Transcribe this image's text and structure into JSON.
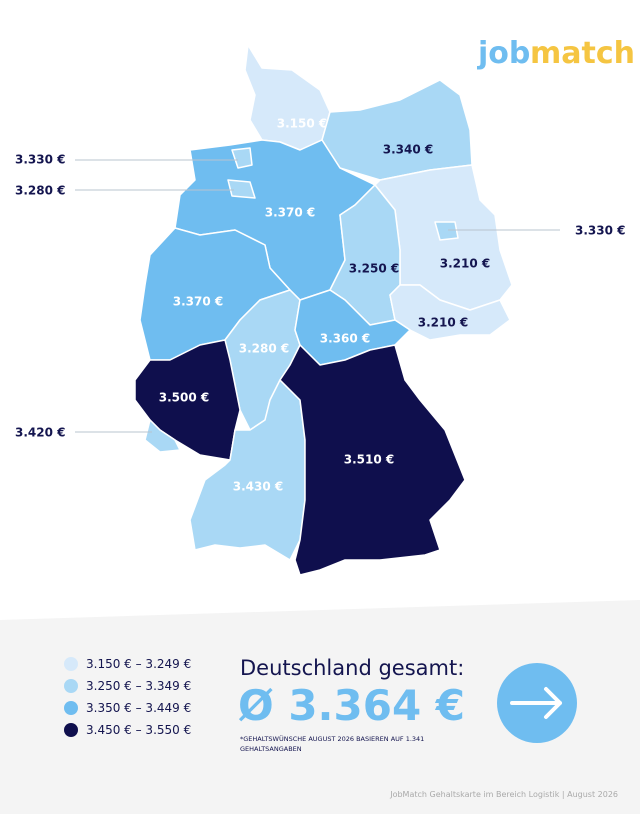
{
  "logo": {
    "part1": "job",
    "part2": "match"
  },
  "map": {
    "regions": [
      "3.150 €",
      "3.340 €",
      "3.330 €",
      "3.280 €",
      "3.370 €",
      "3.330 €",
      "3.250 €",
      "3.210 €",
      "3.210 €",
      "3.370 €",
      "3.280 €",
      "3.360 €",
      "3.500 €",
      "3.420 €",
      "3.430 €",
      "3.510 €"
    ]
  },
  "legend": {
    "items": [
      "3.150 € – 3.249 €",
      "3.250 € – 3.349 €",
      "3.350 € – 3.449 €",
      "3.450 € – 3.550 €"
    ]
  },
  "summary": {
    "title": "Deutschland gesamt:",
    "value": "Ø 3.364 €",
    "footnote": [
      "*GEHALTSWÜNSCHE AUGUST 2026 BASIEREN AUF 1.341",
      "GEHALTSANGABEN"
    ]
  },
  "footer": "JobMatch Gehaltskarte im Bereich Logistik  |  August 2026"
}
